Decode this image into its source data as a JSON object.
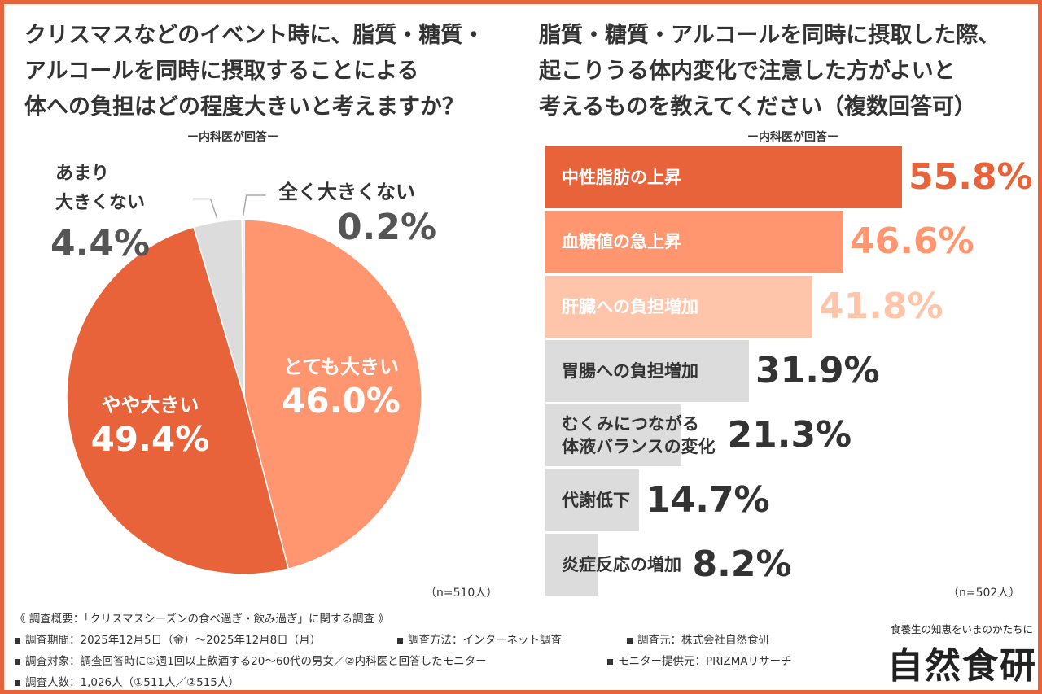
{
  "questions": {
    "q1": [
      "クリスマスなどのイベント時に、脂質・糖質・",
      "アルコールを同時に摂取することによる",
      "体への負担はどの程度大きいと考えますか？"
    ],
    "q2": [
      "脂質・糖質・アルコールを同時に摂取した際、",
      "起こりうる体内変化で注意した方がよいと",
      "考えるものを教えてください（複数回答可）"
    ]
  },
  "subtitle": "ー内科医が回答ー",
  "n1": "（n=510人）",
  "n2": "（n=502人）",
  "colors": {
    "accent": "#e8633a",
    "accent_light": "#ff9670",
    "accent_pale": "#ffc5ab",
    "gray": "#dcdcdc",
    "text_dark": "#333333"
  },
  "chart_data": [
    {
      "type": "pie",
      "slices": [
        {
          "label": "とても大きい",
          "value_text": "46.0%",
          "value": 46.0,
          "color": "#ff9670"
        },
        {
          "label": "やや大きい",
          "value_text": "49.4%",
          "value": 49.4,
          "color": "#e8633a"
        },
        {
          "label": "あまり 大きくない",
          "label_lines": [
            "あまり",
            "大きくない"
          ],
          "value_text": "4.4%",
          "value": 4.4,
          "color": "#dcdcdc"
        },
        {
          "label": "全く大きくない",
          "value_text": "0.2%",
          "value": 0.2,
          "color": "#bbbbbb"
        }
      ]
    },
    {
      "type": "bar",
      "orientation": "horizontal",
      "xlim": [
        0,
        100
      ],
      "categories": [
        "中性脂肪の上昇",
        "血糖値の急上昇",
        "肝臓への負担増加",
        "胃腸への負担増加",
        "むくみにつながる 体液バランスの変化",
        "代謝低下",
        "炎症反応の増加"
      ],
      "bars": [
        {
          "label_lines": [
            "中性脂肪の上昇"
          ],
          "value": 55.8,
          "value_text": "55.8%",
          "fill": "#e8633a",
          "label_color": "#ffffff",
          "value_color": "#e8633a"
        },
        {
          "label_lines": [
            "血糖値の急上昇"
          ],
          "value": 46.6,
          "value_text": "46.6%",
          "fill": "#ff9670",
          "label_color": "#ffffff",
          "value_color": "#ff9670"
        },
        {
          "label_lines": [
            "肝臓への負担増加"
          ],
          "value": 41.8,
          "value_text": "41.8%",
          "fill": "#ffc5ab",
          "label_color": "#ffffff",
          "value_color": "#ffc5ab"
        },
        {
          "label_lines": [
            "胃腸への負担増加"
          ],
          "value": 31.9,
          "value_text": "31.9%",
          "fill": "#dcdcdc",
          "label_color": "#333333",
          "value_color": "#333333"
        },
        {
          "label_lines": [
            "むくみにつながる",
            "体液バランスの変化"
          ],
          "value": 21.3,
          "value_text": "21.3%",
          "fill": "#dcdcdc",
          "label_color": "#333333",
          "value_color": "#333333"
        },
        {
          "label_lines": [
            "代謝低下"
          ],
          "value": 14.7,
          "value_text": "14.7%",
          "fill": "#dcdcdc",
          "label_color": "#333333",
          "value_color": "#333333"
        },
        {
          "label_lines": [
            "炎症反応の増加"
          ],
          "value": 8.2,
          "value_text": "8.2%",
          "fill": "#dcdcdc",
          "label_color": "#333333",
          "value_color": "#333333"
        }
      ]
    }
  ],
  "footer": {
    "title": "《 調査概要：「クリスマスシーズンの食べ過ぎ・飲み過ぎ」に関する調査 》",
    "period": "調査期間：2025年12月5日（金）～2025年12月8日（月）",
    "method": "調査方法：インターネット調査",
    "source": "調査元：株式会社自然食研",
    "target": "調査対象：調査回答時に①週1回以上飲酒する20～60代の男女／②内科医と回答したモニター",
    "provider": "モニター提供元：PRIZMAリサーチ",
    "count": "調査人数：1,026人（①511人／②515人）"
  },
  "brand": {
    "tagline": "食養生の知恵をいまのかたちに",
    "name": "自然食研"
  }
}
